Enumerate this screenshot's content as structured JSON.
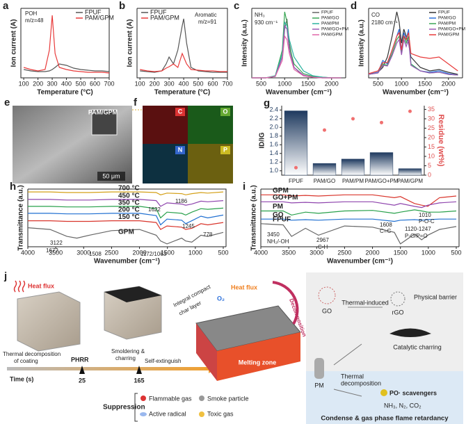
{
  "chart_data": [
    {
      "type": "line",
      "panel": "a",
      "xlabel": "Temperature (°C)",
      "ylabel": "Ion current (A)",
      "annotations": [
        "POH",
        "m/z=48"
      ],
      "legend": "upper right",
      "x": [
        100,
        150,
        200,
        250,
        280,
        300,
        320,
        350,
        400,
        450,
        500,
        550,
        600,
        650,
        700
      ],
      "xlim": [
        80,
        700
      ],
      "xticks": [
        100,
        200,
        300,
        400,
        500,
        600,
        700
      ],
      "ylim": [
        0,
        1
      ],
      "series": [
        {
          "name": "FPUF",
          "color": "#555555",
          "values": [
            0.12,
            0.1,
            0.09,
            0.09,
            0.1,
            0.12,
            0.15,
            0.2,
            0.18,
            0.14,
            0.12,
            0.11,
            0.1,
            0.1,
            0.09
          ]
        },
        {
          "name": "PAM/GPM",
          "color": "#e83a3a",
          "values": [
            0.15,
            0.12,
            0.1,
            0.12,
            0.4,
            0.9,
            0.35,
            0.15,
            0.12,
            0.1,
            0.09,
            0.08,
            0.08,
            0.08,
            0.07
          ]
        }
      ]
    },
    {
      "type": "line",
      "panel": "b",
      "xlabel": "Temperature (°C)",
      "ylabel": "Ion current (A)",
      "annotations": [
        "Aromatic",
        "m/z=91"
      ],
      "legend": "upper left",
      "x": [
        100,
        150,
        200,
        250,
        280,
        300,
        330,
        360,
        390,
        400,
        420,
        450,
        500,
        550,
        600,
        650,
        700
      ],
      "xlim": [
        80,
        700
      ],
      "xticks": [
        100,
        200,
        300,
        400,
        500,
        600,
        700
      ],
      "ylim": [
        0,
        1
      ],
      "series": [
        {
          "name": "FPUF",
          "color": "#555555",
          "values": [
            0.1,
            0.09,
            0.08,
            0.1,
            0.2,
            0.3,
            0.2,
            0.4,
            0.75,
            0.85,
            0.5,
            0.15,
            0.1,
            0.09,
            0.08,
            0.08,
            0.08
          ]
        },
        {
          "name": "PAM/GPM",
          "color": "#e83a3a",
          "values": [
            0.12,
            0.1,
            0.09,
            0.1,
            0.14,
            0.16,
            0.2,
            0.15,
            0.35,
            0.3,
            0.2,
            0.12,
            0.11,
            0.1,
            0.1,
            0.09,
            0.09
          ]
        }
      ]
    },
    {
      "type": "line",
      "panel": "c",
      "xlabel": "Wavenumber (cm⁻¹)",
      "ylabel": "Intensity (a.u.)",
      "annotations": [
        "NH₃",
        "930 cm⁻¹"
      ],
      "legend": "upper right",
      "x": [
        300,
        600,
        800,
        950,
        1000,
        1050,
        1100,
        1200,
        1400,
        1600,
        1800,
        2000,
        2200
      ],
      "xlim": [
        300,
        2300
      ],
      "xticks": [
        500,
        1000,
        1500,
        2000
      ],
      "ylim": [
        0,
        1
      ],
      "series": [
        {
          "name": "FPUF",
          "color": "#666666",
          "values": [
            0,
            0,
            0.02,
            0.3,
            0.7,
            0.85,
            0.5,
            0.15,
            0.03,
            0.01,
            0,
            0,
            0
          ]
        },
        {
          "name": "PAM/GO",
          "color": "#3aa655",
          "values": [
            0,
            0,
            0.03,
            0.4,
            0.95,
            0.8,
            0.45,
            0.2,
            0.06,
            0.02,
            0.01,
            0,
            0
          ]
        },
        {
          "name": "PAM/PM",
          "color": "#2bb3a0",
          "values": [
            0,
            0,
            0.03,
            0.35,
            0.8,
            0.75,
            0.55,
            0.3,
            0.1,
            0.03,
            0.01,
            0,
            0
          ]
        },
        {
          "name": "PAM/GO+PM",
          "color": "#9b59b6",
          "values": [
            0,
            0,
            0.02,
            0.3,
            0.75,
            0.7,
            0.4,
            0.15,
            0.04,
            0.01,
            0,
            0,
            0
          ]
        },
        {
          "name": "PAM/GPM",
          "color": "#e066a8",
          "values": [
            0,
            0,
            0.02,
            0.25,
            0.6,
            0.55,
            0.35,
            0.12,
            0.03,
            0.01,
            0,
            0,
            0
          ]
        }
      ]
    },
    {
      "type": "line",
      "panel": "d",
      "xlabel": "Wavenumber (cm⁻¹)",
      "ylabel": "Intensity (a.u.)",
      "annotations": [
        "CO",
        "2180 cm⁻¹"
      ],
      "legend": "upper right",
      "x": [
        300,
        500,
        600,
        700,
        800,
        900,
        950,
        1000,
        1050,
        1100,
        1150,
        1200,
        1400,
        1600,
        1800,
        2000,
        2200
      ],
      "xlim": [
        300,
        2300
      ],
      "xticks": [
        500,
        1000,
        1500,
        2000
      ],
      "ylim": [
        0,
        1
      ],
      "series": [
        {
          "name": "FPUF",
          "color": "#333333",
          "values": [
            0.05,
            0.08,
            0.15,
            0.3,
            0.6,
            0.95,
            0.8,
            0.5,
            0.7,
            0.6,
            0.5,
            0.3,
            0.15,
            0.1,
            0.12,
            0.08,
            0.05
          ]
        },
        {
          "name": "PAM/GO",
          "color": "#2a6fdb",
          "values": [
            0.05,
            0.08,
            0.25,
            0.2,
            0.4,
            0.6,
            0.7,
            0.4,
            0.65,
            0.55,
            0.7,
            0.2,
            0.1,
            0.08,
            0.1,
            0.06,
            0.04
          ]
        },
        {
          "name": "PAM/PM",
          "color": "#3aa655",
          "values": [
            0.05,
            0.07,
            0.2,
            0.18,
            0.35,
            0.55,
            0.6,
            0.35,
            0.6,
            0.5,
            0.6,
            0.2,
            0.1,
            0.07,
            0.08,
            0.05,
            0.04
          ]
        },
        {
          "name": "PAM/GO+PM",
          "color": "#9b59b6",
          "values": [
            0.05,
            0.07,
            0.18,
            0.17,
            0.32,
            0.5,
            0.55,
            0.33,
            0.55,
            0.45,
            0.55,
            0.18,
            0.1,
            0.07,
            0.08,
            0.05,
            0.04
          ]
        },
        {
          "name": "PAM/GPM",
          "color": "#e83a3a",
          "values": [
            0.06,
            0.1,
            0.22,
            0.22,
            0.4,
            0.6,
            0.65,
            0.4,
            0.6,
            0.55,
            0.65,
            0.35,
            0.3,
            0.28,
            0.3,
            0.2,
            0.1
          ]
        }
      ]
    },
    {
      "type": "bar",
      "panel": "g",
      "ylabel": "ID/IG",
      "y2label": "Residue (wt%)",
      "categories": [
        "FPUF",
        "PAM/GO",
        "PAM/PM",
        "PAM/GO+PM",
        "PAM/GPM"
      ],
      "ylim": [
        0.9,
        2.5
      ],
      "yticks": [
        {
          "value": 1,
          "label": "1.0"
        },
        1.2,
        1.4,
        1.6,
        1.8,
        {
          "value": 2,
          "label": "2.0"
        },
        2.2,
        2.4
      ],
      "y2lim": [
        0,
        37
      ],
      "y2ticks": [
        0,
        5,
        10,
        15,
        20,
        25,
        30,
        35
      ],
      "series": [
        {
          "name": "ID/IG",
          "color": "#1f3a5f",
          "values": [
            2.38,
            1.17,
            1.27,
            1.42,
            1.05
          ]
        },
        {
          "name": "Residue",
          "color": "#f07070",
          "axis": "y2",
          "values": [
            4,
            24,
            30,
            28,
            34
          ]
        }
      ]
    },
    {
      "type": "line",
      "panel": "h",
      "xlabel": "Wavenumber (cm⁻¹)",
      "ylabel": "Transmittance (a.u.)",
      "legend": "inline",
      "annotations": [
        "1186",
        "1622",
        "1245",
        "778",
        "3122",
        "1672",
        "1508",
        "1172/1063"
      ],
      "x": [
        4000,
        3600,
        3300,
        3122,
        2900,
        2500,
        2000,
        1700,
        1622,
        1508,
        1245,
        1172,
        1063,
        900,
        778,
        500
      ],
      "xlim": [
        4000,
        450
      ],
      "xticks": [
        4000,
        3500,
        3000,
        2500,
        2000,
        1500,
        1000,
        500
      ],
      "ylim": [
        0,
        1
      ],
      "series": [
        {
          "name": "700 °C",
          "color": "#d4a017",
          "values": [
            0.95,
            0.95,
            0.94,
            0.94,
            0.94,
            0.95,
            0.95,
            0.94,
            0.9,
            0.93,
            0.92,
            0.9,
            0.92,
            0.94,
            0.93,
            0.95
          ]
        },
        {
          "name": "450 °C",
          "color": "#8e44ad",
          "values": [
            0.82,
            0.82,
            0.81,
            0.81,
            0.81,
            0.82,
            0.82,
            0.8,
            0.7,
            0.76,
            0.74,
            0.72,
            0.74,
            0.79,
            0.78,
            0.8
          ]
        },
        {
          "name": "350 °C",
          "color": "#27a04a",
          "values": [
            0.7,
            0.7,
            0.69,
            0.69,
            0.69,
            0.7,
            0.7,
            0.66,
            0.5,
            0.6,
            0.58,
            0.55,
            0.6,
            0.66,
            0.65,
            0.67
          ]
        },
        {
          "name": "200 °C",
          "color": "#1f6fd1",
          "values": [
            0.58,
            0.58,
            0.57,
            0.57,
            0.57,
            0.58,
            0.58,
            0.54,
            0.38,
            0.48,
            0.46,
            0.4,
            0.45,
            0.53,
            0.5,
            0.55
          ]
        },
        {
          "name": "150 °C",
          "color": "#d9342b",
          "values": [
            0.45,
            0.45,
            0.44,
            0.44,
            0.44,
            0.45,
            0.45,
            0.42,
            0.3,
            0.36,
            0.34,
            0.3,
            0.32,
            0.4,
            0.38,
            0.42
          ]
        },
        {
          "name": "GPM",
          "color": "#666666",
          "values": [
            0.33,
            0.3,
            0.18,
            0.15,
            0.2,
            0.28,
            0.3,
            0.2,
            0.1,
            0.05,
            0.15,
            0.1,
            0.08,
            0.2,
            0.18,
            0.25
          ]
        }
      ]
    },
    {
      "type": "line",
      "panel": "i",
      "xlabel": "Wavenumber (cm⁻¹)",
      "ylabel": "Transmittance (a.u.)",
      "legend": "inline",
      "annotations": [
        "3450",
        "NH₂/-OH",
        "2967",
        "C-H",
        "1608",
        "C=C",
        "1120-1247",
        "P-O/P=O",
        "1010",
        "P-O-C"
      ],
      "x": [
        4000,
        3600,
        3450,
        3200,
        2967,
        2500,
        2000,
        1608,
        1500,
        1247,
        1120,
        1010,
        800,
        500
      ],
      "xlim": [
        4000,
        450
      ],
      "xticks": [
        4000,
        3500,
        3000,
        2500,
        2000,
        1500,
        1000,
        500
      ],
      "ylim": [
        0,
        1
      ],
      "series": [
        {
          "name": "GPM",
          "color": "#d9342b",
          "values": [
            0.9,
            0.9,
            0.88,
            0.89,
            0.88,
            0.9,
            0.9,
            0.85,
            0.87,
            0.75,
            0.72,
            0.7,
            0.85,
            0.88
          ]
        },
        {
          "name": "GO+PM",
          "color": "#8e44ad",
          "values": [
            0.78,
            0.78,
            0.76,
            0.77,
            0.76,
            0.78,
            0.78,
            0.72,
            0.75,
            0.7,
            0.68,
            0.72,
            0.76,
            0.78
          ]
        },
        {
          "name": "PM",
          "color": "#27a04a",
          "values": [
            0.62,
            0.62,
            0.55,
            0.6,
            0.58,
            0.62,
            0.63,
            0.58,
            0.6,
            0.64,
            0.62,
            0.6,
            0.6,
            0.62
          ]
        },
        {
          "name": "GO",
          "color": "#1f6fd1",
          "values": [
            0.48,
            0.48,
            0.46,
            0.47,
            0.46,
            0.48,
            0.48,
            0.44,
            0.46,
            0.47,
            0.46,
            0.47,
            0.48,
            0.48
          ]
        },
        {
          "name": "FPUF",
          "color": "#666666",
          "values": [
            0.4,
            0.38,
            0.18,
            0.32,
            0.2,
            0.36,
            0.34,
            0.25,
            0.05,
            0.22,
            0.12,
            0.2,
            0.3,
            0.35
          ]
        }
      ]
    }
  ],
  "figure_panels": {
    "e": {
      "panel": "e",
      "label": "PAM/GPM",
      "scale_bar": "50 μm"
    },
    "f": {
      "panel": "f",
      "maps": [
        "C",
        "O",
        "N",
        "P"
      ]
    },
    "j": {
      "panel": "j",
      "heat_flux": "Heat flux",
      "coating": [
        "Thermal decomposition",
        "of coating"
      ],
      "phrr": "PHRR",
      "smoldering": [
        "Smoldering &",
        "charring"
      ],
      "self_extinguish": "Self-extinguish",
      "time": "Time (s)",
      "t1": "25",
      "t2": "165",
      "char_layer": [
        "Integral compact",
        "char layer"
      ],
      "o2": "O₂",
      "heat_flux2": "Heat flux",
      "decomposition": "Decomposition",
      "melting": "Melting zone",
      "suppression": "Suppression",
      "flammable": "Flammable gas",
      "smoke": "Smoke particle",
      "radical": "Active radical",
      "toxic": "Toxic gas",
      "go": "GO",
      "thermal_induced": "Thermal-induced",
      "rgo": "rGO",
      "barrier": "Physical barrier",
      "catalytic": "Catalytic charring",
      "pm": "PM",
      "thermal_dec": [
        "Thermal",
        "decomposition"
      ],
      "scavengers": "PO· scavengers",
      "gases": "NH₃, N₂, CO₂",
      "retardancy": "Condense & gas phase flame retardancy"
    }
  }
}
